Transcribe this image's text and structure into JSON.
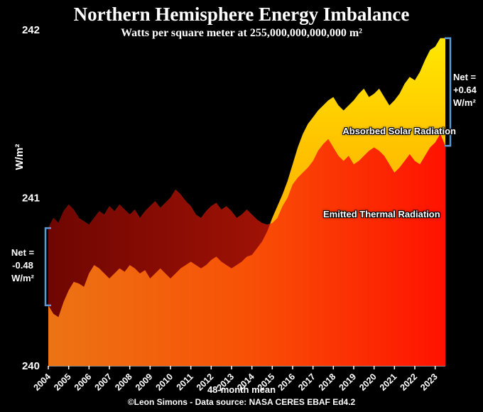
{
  "title": "Northern Hemisphere Energy Imbalance",
  "subtitle": "Watts per square meter at 255,000,000,000,000 m²",
  "footer": {
    "mean_label": "48-month mean",
    "credit": "©Leon Simons - Data source: NASA CERES EBAF Ed4.2"
  },
  "annotations": {
    "asr_label": "Absorbed Solar Radiation",
    "olr_label": "Emitted Thermal Radiation",
    "right_net": {
      "line1": "Net =",
      "line2": "+0.64",
      "line3": "W/m²"
    },
    "left_net": {
      "line1": "Net =",
      "line2": "-0.48",
      "line3": "W/m²"
    }
  },
  "colors": {
    "background": "#000000",
    "text": "#ffffff",
    "bracket": "#5b9bd5",
    "red_left": "#ec7414",
    "red_mid": "#f85106",
    "red_right": "#ff1200",
    "maroon_left": "#6f0602",
    "maroon_right": "#a01205",
    "yellow_top": "#ffe800",
    "yellow_mid": "#ffc100",
    "yellow_bottom": "#ff9d00"
  },
  "chart_data": {
    "type": "area",
    "title": "Northern Hemisphere Energy Imbalance",
    "subtitle": "Watts per square meter at 255,000,000,000,000 m²",
    "ylabel": "W/m²",
    "ylim": [
      240,
      242
    ],
    "y_ticks": [
      240,
      241,
      242
    ],
    "x_start": 2004.0,
    "x_step": 0.25,
    "x_ticks": [
      2004,
      2005,
      2006,
      2007,
      2008,
      2009,
      2010,
      2011,
      2012,
      2013,
      2014,
      2015,
      2016,
      2017,
      2018,
      2019,
      2020,
      2021,
      2022,
      2023
    ],
    "net_start": -0.48,
    "net_end": 0.64,
    "series": [
      {
        "name": "Absorbed Solar Radiation",
        "values": [
          240.36,
          240.31,
          240.29,
          240.38,
          240.45,
          240.5,
          240.49,
          240.47,
          240.55,
          240.6,
          240.58,
          240.55,
          240.52,
          240.55,
          240.58,
          240.56,
          240.6,
          240.58,
          240.55,
          240.57,
          240.52,
          240.55,
          240.58,
          240.55,
          240.52,
          240.55,
          240.58,
          240.6,
          240.62,
          240.6,
          240.58,
          240.6,
          240.63,
          240.65,
          240.62,
          240.6,
          240.58,
          240.6,
          240.62,
          240.65,
          240.66,
          240.7,
          240.74,
          240.8,
          240.88,
          240.95,
          241.02,
          241.1,
          241.2,
          241.3,
          241.38,
          241.44,
          241.48,
          241.52,
          241.55,
          241.58,
          241.6,
          241.55,
          241.52,
          241.55,
          241.58,
          241.62,
          241.65,
          241.6,
          241.62,
          241.65,
          241.6,
          241.55,
          241.58,
          241.62,
          241.68,
          241.72,
          241.7,
          241.75,
          241.82,
          241.88,
          241.9,
          241.95,
          241.95
        ]
      },
      {
        "name": "Emitted Thermal Radiation",
        "values": [
          240.82,
          240.88,
          240.85,
          240.92,
          240.96,
          240.93,
          240.88,
          240.86,
          240.84,
          240.88,
          240.92,
          240.9,
          240.95,
          240.92,
          240.96,
          240.93,
          240.9,
          240.93,
          240.88,
          240.92,
          240.95,
          240.98,
          240.94,
          240.97,
          241.0,
          241.05,
          241.02,
          240.98,
          240.95,
          240.9,
          240.88,
          240.92,
          240.95,
          240.97,
          240.93,
          240.95,
          240.92,
          240.88,
          240.9,
          240.93,
          240.9,
          240.87,
          240.85,
          240.84,
          240.85,
          240.88,
          240.95,
          241.0,
          241.08,
          241.12,
          241.15,
          241.18,
          241.22,
          241.28,
          241.32,
          241.35,
          241.3,
          241.25,
          241.22,
          241.25,
          241.2,
          241.22,
          241.25,
          241.28,
          241.3,
          241.28,
          241.25,
          241.2,
          241.15,
          241.18,
          241.22,
          241.26,
          241.22,
          241.2,
          241.25,
          241.3,
          241.33,
          241.38,
          241.31
        ]
      }
    ]
  }
}
